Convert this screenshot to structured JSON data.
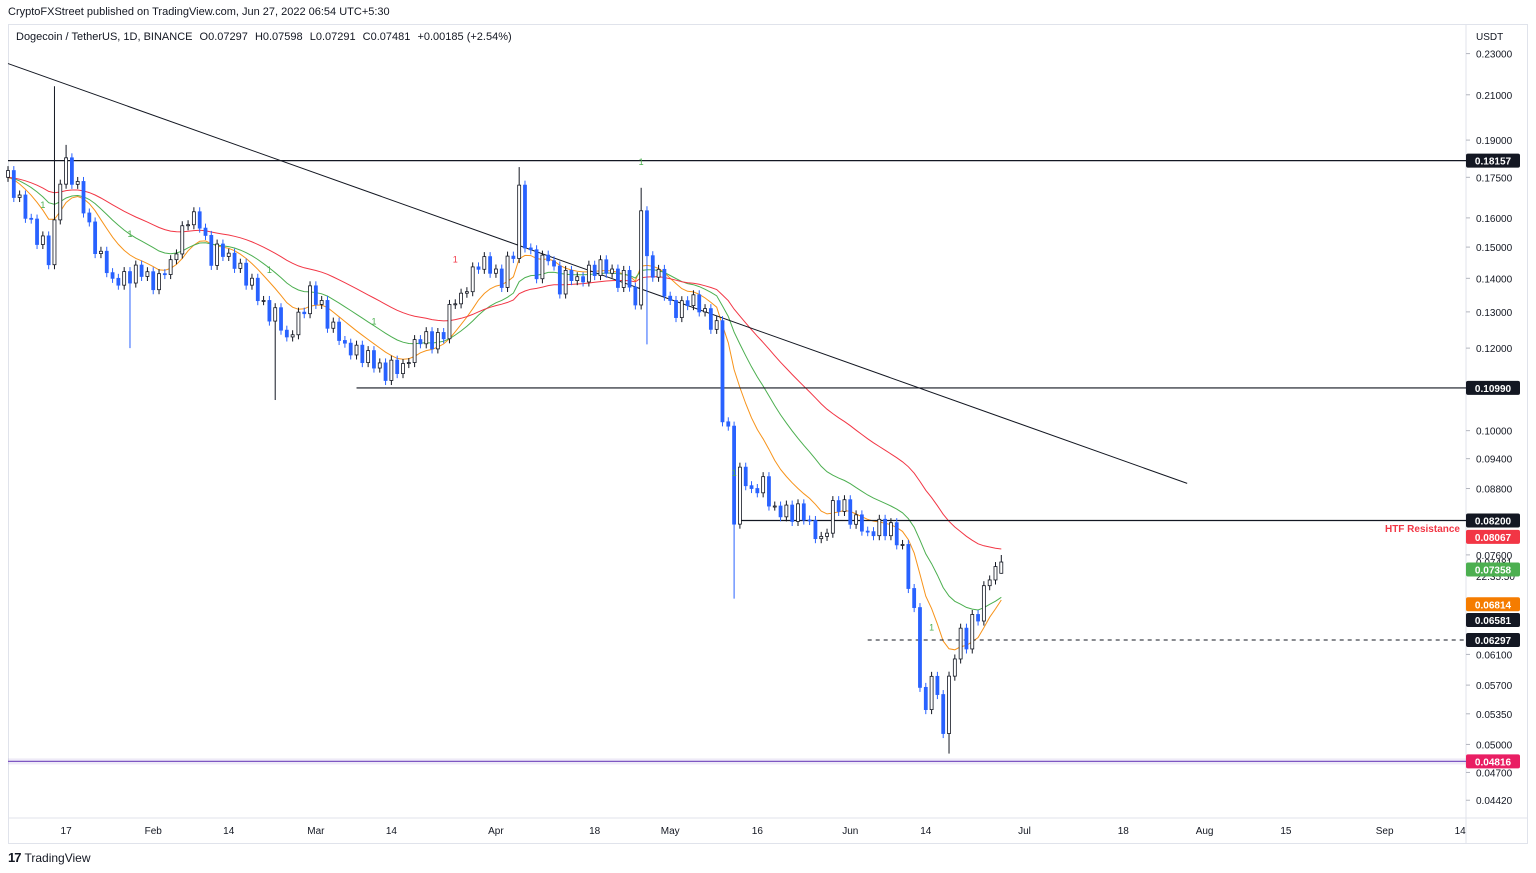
{
  "header": {
    "publisher_text": "CryptoFXStreet published on TradingView.com, Jun 27, 2022 06:54 UTC+5:30"
  },
  "legend": {
    "symbol": "Dogecoin / TetherUS, 1D, BINANCE",
    "open": "O0.07297",
    "high": "H0.07598",
    "low": "L0.07291",
    "close": "C0.07481",
    "change": "+0.00185 (+2.54%)"
  },
  "footer": {
    "brand": "TradingView",
    "logo_icon": "tradingview-logo-icon"
  },
  "colors": {
    "up": "#131722",
    "down": "#2962ff",
    "ema_fast": "#f7931a",
    "ema_mid": "#4caf50",
    "ema_slow": "#f23645",
    "support_purple": "#7e57c2",
    "htf": "#f23645",
    "tag_green": "#4caf50",
    "tag_orange": "#f57c00",
    "tag_black": "#131722",
    "tag_red": "#f23645",
    "tag_pink": "#e91e63"
  },
  "chart_data": {
    "type": "candlestick",
    "pair": "DOGE/USDT",
    "timeframe": "1D",
    "y_scale": "log",
    "ylim": [
      0.0425,
      0.245
    ],
    "x_range": [
      "2022-01-07",
      "2022-09-15"
    ],
    "currency_label": "USDT",
    "y_ticks": [
      "0.23000",
      "0.21000",
      "0.19000",
      "0.17500",
      "0.16000",
      "0.15000",
      "0.14000",
      "0.13000",
      "0.12000",
      "0.10000",
      "0.09400",
      "0.08800",
      "0.07600",
      "0.06100",
      "0.05700",
      "0.05350",
      "0.05000",
      "0.04700",
      "0.04420"
    ],
    "x_ticks": [
      {
        "label": "17",
        "date": "2022-01-17"
      },
      {
        "label": "Feb",
        "date": "2022-02-01"
      },
      {
        "label": "14",
        "date": "2022-02-14"
      },
      {
        "label": "Mar",
        "date": "2022-03-01"
      },
      {
        "label": "14",
        "date": "2022-03-14"
      },
      {
        "label": "Apr",
        "date": "2022-04-01"
      },
      {
        "label": "18",
        "date": "2022-04-18"
      },
      {
        "label": "May",
        "date": "2022-05-01"
      },
      {
        "label": "16",
        "date": "2022-05-16"
      },
      {
        "label": "Jun",
        "date": "2022-06-01"
      },
      {
        "label": "14",
        "date": "2022-06-14"
      },
      {
        "label": "Jul",
        "date": "2022-07-01"
      },
      {
        "label": "18",
        "date": "2022-07-18"
      },
      {
        "label": "Aug",
        "date": "2022-08-01"
      },
      {
        "label": "15",
        "date": "2022-08-15"
      },
      {
        "label": "Sep",
        "date": "2022-09-01"
      },
      {
        "label": "14",
        "date": "2022-09-14"
      }
    ],
    "anchors": [
      [
        "2022-01-07",
        0.175
      ],
      [
        "2022-01-09",
        0.165
      ],
      [
        "2022-01-11",
        0.158
      ],
      [
        "2022-01-13",
        0.15
      ],
      [
        "2022-01-14",
        0.145
      ],
      [
        "2022-01-16",
        0.175
      ],
      [
        "2022-01-17",
        0.18
      ],
      [
        "2022-01-19",
        0.17
      ],
      [
        "2022-01-21",
        0.157
      ],
      [
        "2022-01-23",
        0.145
      ],
      [
        "2022-01-25",
        0.14
      ],
      [
        "2022-01-27",
        0.14
      ],
      [
        "2022-01-30",
        0.142
      ],
      [
        "2022-02-02",
        0.138
      ],
      [
        "2022-02-05",
        0.15
      ],
      [
        "2022-02-07",
        0.16
      ],
      [
        "2022-02-09",
        0.158
      ],
      [
        "2022-02-11",
        0.147
      ],
      [
        "2022-02-14",
        0.148
      ],
      [
        "2022-02-17",
        0.14
      ],
      [
        "2022-02-20",
        0.132
      ],
      [
        "2022-02-22",
        0.128
      ],
      [
        "2022-02-24",
        0.123
      ],
      [
        "2022-02-26",
        0.128
      ],
      [
        "2022-02-28",
        0.135
      ],
      [
        "2022-03-02",
        0.132
      ],
      [
        "2022-03-04",
        0.124
      ],
      [
        "2022-03-07",
        0.12
      ],
      [
        "2022-03-10",
        0.117
      ],
      [
        "2022-03-13",
        0.114
      ],
      [
        "2022-03-15",
        0.114
      ],
      [
        "2022-03-17",
        0.118
      ],
      [
        "2022-03-19",
        0.123
      ],
      [
        "2022-03-21",
        0.121
      ],
      [
        "2022-03-23",
        0.125
      ],
      [
        "2022-03-25",
        0.133
      ],
      [
        "2022-03-27",
        0.138
      ],
      [
        "2022-03-29",
        0.145
      ],
      [
        "2022-03-31",
        0.143
      ],
      [
        "2022-04-02",
        0.14
      ],
      [
        "2022-04-04",
        0.147
      ],
      [
        "2022-04-05",
        0.172
      ],
      [
        "2022-04-06",
        0.152
      ],
      [
        "2022-04-08",
        0.142
      ],
      [
        "2022-04-10",
        0.147
      ],
      [
        "2022-04-12",
        0.138
      ],
      [
        "2022-04-14",
        0.14
      ],
      [
        "2022-04-16",
        0.141
      ],
      [
        "2022-04-18",
        0.143
      ],
      [
        "2022-04-20",
        0.143
      ],
      [
        "2022-04-22",
        0.14
      ],
      [
        "2022-04-24",
        0.138
      ],
      [
        "2022-04-25",
        0.132
      ],
      [
        "2022-04-26",
        0.165
      ],
      [
        "2022-04-27",
        0.145
      ],
      [
        "2022-04-29",
        0.14
      ],
      [
        "2022-05-01",
        0.132
      ],
      [
        "2022-05-03",
        0.13
      ],
      [
        "2022-05-05",
        0.135
      ],
      [
        "2022-05-07",
        0.129
      ],
      [
        "2022-05-09",
        0.125
      ],
      [
        "2022-05-10",
        0.103
      ],
      [
        "2022-05-11",
        0.1
      ],
      [
        "2022-05-12",
        0.083
      ],
      [
        "2022-05-13",
        0.09
      ],
      [
        "2022-05-15",
        0.088
      ],
      [
        "2022-05-17",
        0.089
      ],
      [
        "2022-05-19",
        0.083
      ],
      [
        "2022-05-21",
        0.084
      ],
      [
        "2022-05-23",
        0.083
      ],
      [
        "2022-05-25",
        0.082
      ],
      [
        "2022-05-27",
        0.078
      ],
      [
        "2022-05-29",
        0.084
      ],
      [
        "2022-05-31",
        0.085
      ],
      [
        "2022-06-02",
        0.081
      ],
      [
        "2022-06-04",
        0.08
      ],
      [
        "2022-06-06",
        0.081
      ],
      [
        "2022-06-08",
        0.08
      ],
      [
        "2022-06-10",
        0.077
      ],
      [
        "2022-06-11",
        0.072
      ],
      [
        "2022-06-12",
        0.066
      ],
      [
        "2022-06-13",
        0.057
      ],
      [
        "2022-06-14",
        0.054
      ],
      [
        "2022-06-15",
        0.059
      ],
      [
        "2022-06-16",
        0.055
      ],
      [
        "2022-06-17",
        0.052
      ],
      [
        "2022-06-18",
        0.057
      ],
      [
        "2022-06-19",
        0.061
      ],
      [
        "2022-06-20",
        0.064
      ],
      [
        "2022-06-21",
        0.063
      ],
      [
        "2022-06-22",
        0.065
      ],
      [
        "2022-06-23",
        0.066
      ],
      [
        "2022-06-24",
        0.071
      ],
      [
        "2022-06-25",
        0.073
      ],
      [
        "2022-06-26",
        0.07297
      ],
      [
        "2022-06-27",
        0.07481
      ]
    ],
    "last_candle": {
      "date": "2022-06-27",
      "open": 0.07297,
      "high": 0.07598,
      "low": 0.07291,
      "close": 0.07481
    },
    "spikes": [
      {
        "date": "2022-01-15",
        "high": 0.214
      },
      {
        "date": "2022-01-17",
        "high": 0.188
      },
      {
        "date": "2022-01-28",
        "low": 0.12
      },
      {
        "date": "2022-02-22",
        "low": 0.107
      },
      {
        "date": "2022-04-05",
        "high": 0.179
      },
      {
        "date": "2022-04-26",
        "high": 0.171
      },
      {
        "date": "2022-04-27",
        "low": 0.121
      },
      {
        "date": "2022-05-12",
        "low": 0.069
      },
      {
        "date": "2022-06-18",
        "low": 0.049
      }
    ],
    "emas": [
      {
        "period": 10,
        "color": "#f7931a",
        "tag": "0.06814"
      },
      {
        "period": 20,
        "color": "#4caf50",
        "tag": "0.07358"
      },
      {
        "period": 40,
        "color": "#f23645",
        "tag": "0.08067"
      }
    ],
    "levels": [
      {
        "price": 0.18157,
        "label": "0.18157",
        "from": "2022-01-07",
        "style": "solid",
        "color": "#131722"
      },
      {
        "price": 0.1099,
        "label": "0.10990",
        "from": "2022-03-08",
        "style": "solid",
        "color": "#131722"
      },
      {
        "price": 0.082,
        "label": "0.08200",
        "from": "2022-05-13",
        "style": "solid",
        "color": "#131722"
      },
      {
        "price": 0.06297,
        "label": "0.06297",
        "from": "2022-06-04",
        "style": "dashed",
        "color": "#131722"
      },
      {
        "price": 0.04816,
        "label": "0.04816",
        "from": "2022-01-07",
        "style": "solid",
        "color": "#7e57c2"
      }
    ],
    "trendline": {
      "from": [
        "2022-01-07",
        0.225
      ],
      "to": [
        "2022-07-29",
        0.089
      ]
    },
    "htf_label": "HTF Resistance",
    "price_tags": {
      "current_price": "0.07481",
      "countdown": "22:35:50",
      "ema_mid": "0.07358",
      "ema_fast": "0.06814",
      "low_tag": "0.06581",
      "dashed": "0.06297",
      "htf": "0.08067",
      "support": "0.04816",
      "resistance_top": "0.18157",
      "resistance_mid": "0.10990",
      "resistance_low": "0.08200"
    },
    "signal_markers": [
      {
        "date": "2022-01-13",
        "label": "1",
        "color": "#4caf50"
      },
      {
        "date": "2022-01-28",
        "label": "1",
        "color": "#4caf50"
      },
      {
        "date": "2022-02-21",
        "label": "1",
        "color": "#4caf50"
      },
      {
        "date": "2022-03-11",
        "label": "1",
        "color": "#4caf50"
      },
      {
        "date": "2022-03-25",
        "label": "1",
        "color": "#f23645"
      },
      {
        "date": "2022-04-26",
        "label": "1",
        "color": "#4caf50"
      },
      {
        "date": "2022-05-12",
        "label": "1",
        "color": "#4caf50"
      },
      {
        "date": "2022-06-15",
        "label": "1",
        "color": "#4caf50"
      }
    ]
  }
}
